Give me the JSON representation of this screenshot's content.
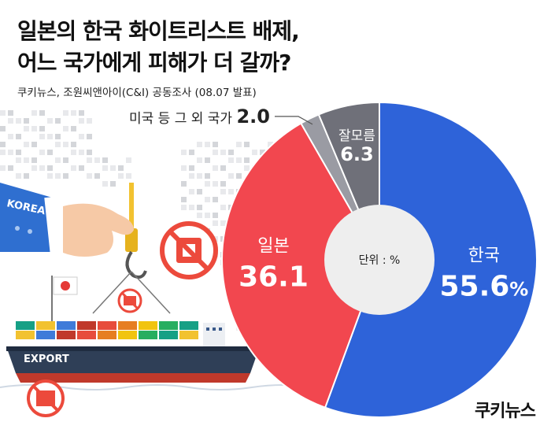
{
  "title_line1": "일본의 한국 화이트리스트 배제,",
  "title_line2": "어느 국가에게 피해가 더 갈까?",
  "source": "쿠키뉴스, 조원씨앤아이(C&I) 공동조사 (08.07 발표)",
  "brand": "쿠키뉴스",
  "illustration": {
    "sleeve_label": "KOREA",
    "ship_label": "EXPORT"
  },
  "chart_data": {
    "type": "pie",
    "unit_label": "단위 : %",
    "start": "top, clockwise",
    "slices": [
      {
        "label": "한국",
        "value": 55.6,
        "display": "55.6",
        "suffix": "%",
        "color": "#2e63d9"
      },
      {
        "label": "일본",
        "value": 36.1,
        "display": "36.1",
        "suffix": "",
        "color": "#f2474f"
      },
      {
        "label": "미국 등 그 외 국가",
        "value": 2.0,
        "display": "2.0",
        "suffix": "",
        "color": "#9a9ba3"
      },
      {
        "label": "잘모름",
        "value": 6.3,
        "display": "6.3",
        "suffix": "",
        "color": "#6f7079"
      }
    ]
  },
  "colors": {
    "korea": "#2e63d9",
    "japan": "#f2474f",
    "other": "#9a9ba3",
    "unknown": "#6f7079",
    "ship_hull": "#2f3f57",
    "sleeve": "#2f6fd0"
  }
}
